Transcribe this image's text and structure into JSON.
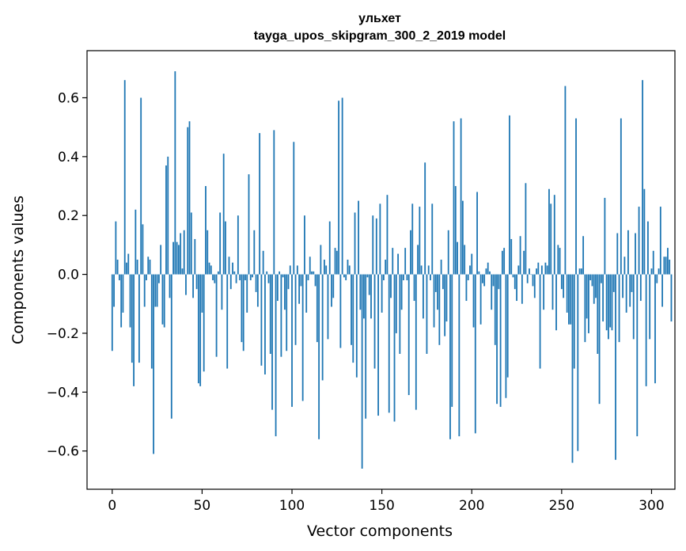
{
  "chart_data": {
    "type": "bar",
    "title_line1": "ульхет",
    "title_line2": "tayga_upos_skipgram_300_2_2019 model",
    "xlabel": "Vector components",
    "ylabel": "Components values",
    "xlim": [
      -14,
      313
    ],
    "ylim": [
      -0.73,
      0.76
    ],
    "xticks": [
      0,
      50,
      100,
      150,
      200,
      250,
      300
    ],
    "xtick_labels": [
      "0",
      "50",
      "100",
      "150",
      "200",
      "250",
      "300"
    ],
    "yticks": [
      -0.6,
      -0.4,
      -0.2,
      0.0,
      0.2,
      0.4,
      0.6
    ],
    "ytick_labels": [
      "−0.6",
      "−0.4",
      "−0.2",
      "0.0",
      "0.2",
      "0.4",
      "0.6"
    ],
    "bar_color": "#1f77b4",
    "values": [
      -0.26,
      -0.11,
      0.18,
      0.05,
      -0.02,
      -0.18,
      -0.13,
      0.66,
      0.04,
      0.07,
      -0.18,
      -0.3,
      -0.38,
      0.22,
      0.05,
      -0.3,
      0.6,
      0.17,
      -0.11,
      -0.02,
      0.06,
      0.05,
      -0.32,
      -0.61,
      -0.11,
      -0.11,
      -0.03,
      0.1,
      -0.17,
      -0.18,
      0.37,
      0.4,
      -0.08,
      -0.49,
      0.11,
      0.69,
      0.11,
      0.1,
      0.14,
      0.02,
      0.15,
      -0.07,
      0.5,
      0.52,
      0.21,
      -0.08,
      0.12,
      -0.05,
      -0.37,
      -0.38,
      -0.13,
      -0.33,
      0.3,
      0.15,
      0.04,
      0.03,
      -0.02,
      -0.03,
      -0.28,
      0.01,
      0.21,
      -0.12,
      0.41,
      0.18,
      -0.32,
      0.06,
      -0.05,
      0.04,
      0.01,
      -0.03,
      0.2,
      -0.02,
      -0.23,
      -0.26,
      -0.02,
      -0.13,
      0.34,
      -0.02,
      -0.01,
      0.15,
      -0.06,
      -0.11,
      0.48,
      -0.31,
      0.08,
      -0.34,
      0.01,
      -0.03,
      -0.27,
      -0.46,
      0.49,
      -0.55,
      -0.09,
      0.01,
      -0.28,
      -0.01,
      -0.12,
      -0.26,
      -0.05,
      0.03,
      -0.45,
      0.45,
      -0.24,
      0.03,
      -0.1,
      -0.04,
      -0.43,
      0.2,
      -0.13,
      -0.02,
      0.06,
      0.01,
      0.01,
      -0.04,
      -0.23,
      -0.56,
      0.1,
      -0.36,
      0.05,
      0.03,
      -0.22,
      0.18,
      -0.11,
      -0.08,
      0.09,
      0.08,
      0.59,
      -0.25,
      0.6,
      -0.01,
      -0.02,
      0.05,
      0.03,
      -0.24,
      -0.3,
      0.21,
      -0.35,
      0.25,
      -0.12,
      -0.66,
      -0.15,
      -0.49,
      -0.01,
      -0.07,
      -0.15,
      0.2,
      -0.32,
      0.19,
      -0.48,
      0.24,
      -0.13,
      -0.02,
      0.05,
      0.27,
      -0.47,
      -0.08,
      0.09,
      -0.5,
      -0.2,
      0.07,
      -0.27,
      -0.12,
      -0.02,
      0.09,
      -0.02,
      -0.41,
      0.15,
      0.24,
      -0.09,
      -0.46,
      0.1,
      0.23,
      0.03,
      -0.15,
      0.38,
      -0.27,
      0.03,
      -0.02,
      0.24,
      -0.18,
      -0.06,
      -0.12,
      -0.24,
      0.05,
      -0.05,
      -0.21,
      -0.16,
      0.15,
      -0.56,
      -0.45,
      0.52,
      0.3,
      0.11,
      -0.55,
      0.53,
      0.25,
      0.1,
      -0.09,
      -0.02,
      0.03,
      0.07,
      -0.18,
      -0.54,
      0.28,
      0.01,
      -0.17,
      -0.03,
      -0.04,
      0.02,
      0.04,
      0.01,
      -0.12,
      -0.04,
      -0.24,
      -0.44,
      -0.05,
      -0.45,
      0.08,
      0.09,
      -0.42,
      -0.35,
      0.54,
      0.12,
      -0.01,
      -0.05,
      -0.09,
      0.03,
      0.13,
      -0.1,
      0.08,
      0.31,
      -0.03,
      0.02,
      0.0,
      -0.04,
      -0.08,
      0.02,
      0.04,
      -0.32,
      0.03,
      -0.12,
      0.04,
      0.03,
      0.29,
      0.24,
      -0.12,
      0.27,
      -0.19,
      0.1,
      0.09,
      -0.05,
      -0.08,
      0.64,
      -0.13,
      -0.17,
      -0.17,
      -0.64,
      -0.32,
      0.53,
      -0.6,
      0.02,
      0.02,
      0.13,
      -0.23,
      -0.15,
      -0.2,
      -0.02,
      -0.04,
      -0.1,
      -0.08,
      -0.27,
      -0.44,
      -0.03,
      -0.16,
      0.26,
      -0.19,
      -0.22,
      -0.18,
      -0.19,
      -0.06,
      -0.63,
      0.14,
      -0.23,
      0.53,
      -0.08,
      0.06,
      -0.13,
      0.15,
      -0.11,
      -0.06,
      -0.22,
      0.14,
      -0.55,
      0.23,
      -0.09,
      0.66,
      0.29,
      -0.38,
      0.18,
      -0.22,
      0.02,
      0.08,
      -0.37,
      -0.03,
      0.02,
      0.23,
      -0.11,
      0.06,
      0.06,
      0.09,
      0.05,
      -0.16
    ]
  }
}
